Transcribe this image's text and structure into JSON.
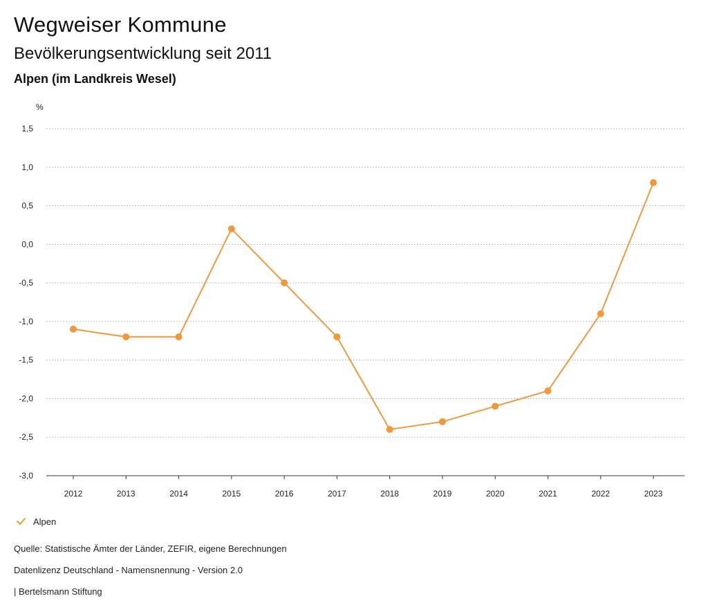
{
  "header": {
    "title": "Wegweiser Kommune",
    "subtitle": "Bevölkerungsentwicklung seit 2011",
    "location": "Alpen (im Landkreis Wesel)"
  },
  "legend": {
    "series_label": "Alpen"
  },
  "footer": {
    "source": "Quelle: Statistische Ämter der Länder, ZEFIR, eigene Berechnungen",
    "license": "Datenlizenz Deutschland - Namensnennung - Version 2.0",
    "publisher": "| Bertelsmann Stiftung"
  },
  "colors": {
    "series": "#f0983a",
    "grid": "#bbbbbb",
    "axis": "#333333"
  },
  "chart_data": {
    "type": "line",
    "title": "Bevölkerungsentwicklung seit 2011",
    "ylabel": "%",
    "xlabel": "",
    "ylim": [
      -3.0,
      1.5
    ],
    "yticks": [
      1.5,
      1.0,
      0.5,
      0.0,
      -0.5,
      -1.0,
      -1.5,
      -2.0,
      -2.5,
      -3.0
    ],
    "ytick_labels": [
      "1,5",
      "1,0",
      "0,5",
      "0,0",
      "-0,5",
      "-1,0",
      "-1,5",
      "-2,0",
      "-2,5",
      "-3,0"
    ],
    "categories": [
      "2012",
      "2013",
      "2014",
      "2015",
      "2016",
      "2017",
      "2018",
      "2019",
      "2020",
      "2021",
      "2022",
      "2023"
    ],
    "series": [
      {
        "name": "Alpen",
        "values": [
          -1.1,
          -1.2,
          -1.2,
          0.2,
          -0.5,
          -1.2,
          -2.4,
          -2.3,
          -2.1,
          -1.9,
          -0.9,
          0.8
        ]
      }
    ],
    "grid": true,
    "legend_position": "bottom-left"
  }
}
